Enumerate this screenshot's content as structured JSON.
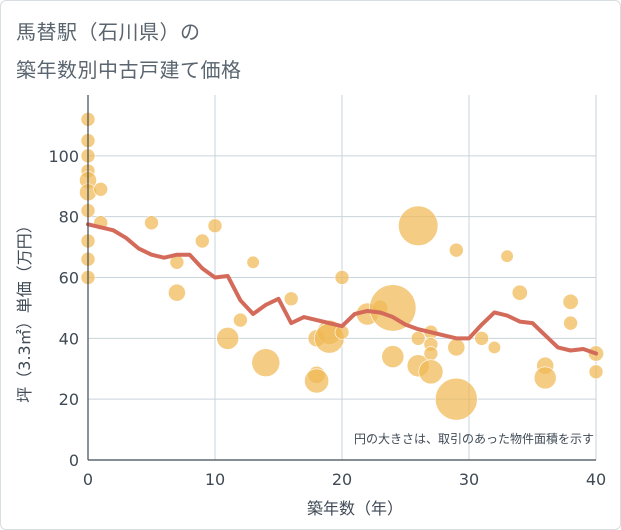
{
  "title_line1": "馬替駅（石川県）の",
  "title_line2": "築年数別中古戸建て価格",
  "chart_data": {
    "type": "scatter",
    "title": "馬替駅（石川県）の 築年数別中古戸建て価格",
    "xlabel": "築年数（年）",
    "ylabel": "坪（3.3㎡）単価（万円）",
    "xlim": [
      0,
      40
    ],
    "ylim": [
      0,
      120
    ],
    "xticks": [
      0,
      10,
      20,
      30,
      40
    ],
    "yticks": [
      0,
      20,
      40,
      60,
      80,
      100
    ],
    "annotation": "円の大きさは、取引のあった物件面積を示す",
    "colors": {
      "bubble": "#f0b955",
      "line": "#d46a5a",
      "grid": "#c9d3dc"
    },
    "bubbles": [
      {
        "x": 0,
        "y": 112,
        "size": 1
      },
      {
        "x": 0,
        "y": 105,
        "size": 1
      },
      {
        "x": 0,
        "y": 100,
        "size": 1
      },
      {
        "x": 0,
        "y": 95,
        "size": 1
      },
      {
        "x": 0,
        "y": 92,
        "size": 1.5
      },
      {
        "x": 0,
        "y": 88,
        "size": 1.5
      },
      {
        "x": 0,
        "y": 82,
        "size": 1
      },
      {
        "x": 0,
        "y": 72,
        "size": 1
      },
      {
        "x": 0,
        "y": 66,
        "size": 1
      },
      {
        "x": 0,
        "y": 60,
        "size": 1
      },
      {
        "x": 1,
        "y": 89,
        "size": 1
      },
      {
        "x": 1,
        "y": 78,
        "size": 1
      },
      {
        "x": 5,
        "y": 78,
        "size": 1
      },
      {
        "x": 7,
        "y": 65,
        "size": 1
      },
      {
        "x": 7,
        "y": 55,
        "size": 1.5
      },
      {
        "x": 9,
        "y": 72,
        "size": 1
      },
      {
        "x": 10,
        "y": 77,
        "size": 1
      },
      {
        "x": 11,
        "y": 40,
        "size": 2.5
      },
      {
        "x": 12,
        "y": 46,
        "size": 1
      },
      {
        "x": 13,
        "y": 65,
        "size": 0.8
      },
      {
        "x": 14,
        "y": 32,
        "size": 4
      },
      {
        "x": 16,
        "y": 53,
        "size": 1
      },
      {
        "x": 18,
        "y": 40,
        "size": 1.5
      },
      {
        "x": 18,
        "y": 28,
        "size": 1.5
      },
      {
        "x": 18,
        "y": 26,
        "size": 3
      },
      {
        "x": 19,
        "y": 42,
        "size": 3
      },
      {
        "x": 19,
        "y": 40,
        "size": 4.5
      },
      {
        "x": 20,
        "y": 60,
        "size": 1
      },
      {
        "x": 20,
        "y": 42,
        "size": 1
      },
      {
        "x": 22,
        "y": 48,
        "size": 2.5
      },
      {
        "x": 23,
        "y": 50,
        "size": 1.2
      },
      {
        "x": 24,
        "y": 50,
        "size": 11
      },
      {
        "x": 24,
        "y": 34,
        "size": 2.5
      },
      {
        "x": 26,
        "y": 77,
        "size": 8
      },
      {
        "x": 26,
        "y": 40,
        "size": 1
      },
      {
        "x": 26,
        "y": 31,
        "size": 2.5
      },
      {
        "x": 27,
        "y": 42,
        "size": 1
      },
      {
        "x": 27,
        "y": 38,
        "size": 1
      },
      {
        "x": 27,
        "y": 35,
        "size": 1
      },
      {
        "x": 27,
        "y": 29,
        "size": 3
      },
      {
        "x": 29,
        "y": 69,
        "size": 1
      },
      {
        "x": 29,
        "y": 37,
        "size": 1.5
      },
      {
        "x": 29,
        "y": 20,
        "size": 9
      },
      {
        "x": 31,
        "y": 40,
        "size": 1
      },
      {
        "x": 32,
        "y": 37,
        "size": 0.8
      },
      {
        "x": 33,
        "y": 67,
        "size": 0.8
      },
      {
        "x": 34,
        "y": 55,
        "size": 1.2
      },
      {
        "x": 36,
        "y": 31,
        "size": 1.5
      },
      {
        "x": 36,
        "y": 27,
        "size": 2.5
      },
      {
        "x": 38,
        "y": 52,
        "size": 1.2
      },
      {
        "x": 38,
        "y": 45,
        "size": 1
      },
      {
        "x": 40,
        "y": 35,
        "size": 1.2
      },
      {
        "x": 40,
        "y": 29,
        "size": 1
      }
    ],
    "trend": {
      "x": [
        0,
        1,
        2,
        3,
        4,
        5,
        6,
        7,
        8,
        9,
        10,
        11,
        12,
        13,
        14,
        15,
        16,
        17,
        18,
        19,
        20,
        21,
        22,
        23,
        24,
        25,
        26,
        27,
        28,
        29,
        30,
        31,
        32,
        33,
        34,
        35,
        36,
        37,
        38,
        39,
        40
      ],
      "y": [
        77.5,
        76.5,
        75.5,
        73,
        69.5,
        67.5,
        66.5,
        67.5,
        67.5,
        63,
        60,
        60.5,
        52.5,
        48,
        51,
        53,
        45,
        47,
        46,
        45,
        44,
        48,
        49,
        48.5,
        47,
        44.5,
        43,
        42,
        41,
        40,
        40,
        44.5,
        48.5,
        47.5,
        45.5,
        45,
        41,
        37,
        36,
        36.5,
        35
      ]
    }
  }
}
